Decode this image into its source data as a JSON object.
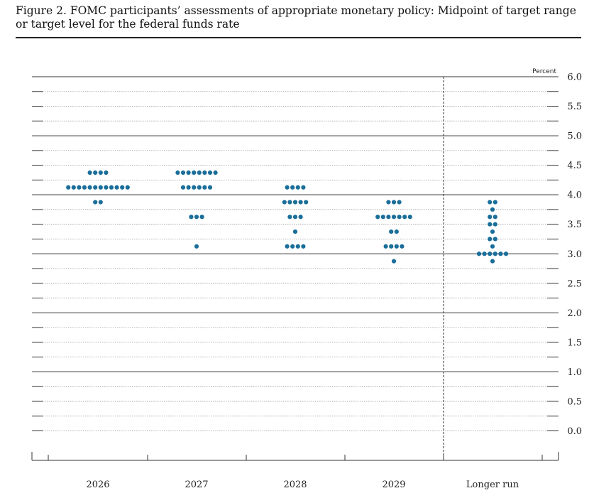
{
  "figure": {
    "title_line1": "Figure 2. FOMC participants’ assessments of appropriate monetary policy: Midpoint of target range",
    "title_line2": "or target level for the federal funds rate"
  },
  "chart_data": {
    "type": "scatter",
    "unit_label": "Percent",
    "ylim": [
      0,
      6
    ],
    "yticks": [
      0.0,
      0.5,
      1.0,
      1.5,
      2.0,
      2.5,
      3.0,
      3.5,
      4.0,
      4.5,
      5.0,
      5.5,
      6.0
    ],
    "ytick_labels": [
      "0.0",
      "0.5",
      "1.0",
      "1.5",
      "2.0",
      "2.5",
      "3.0",
      "3.5",
      "4.0",
      "4.5",
      "5.0",
      "5.5",
      "6.0"
    ],
    "categories": [
      "2026",
      "2027",
      "2028",
      "2029",
      "Longer run"
    ],
    "dots": [
      {
        "category": "2026",
        "levels": [
          {
            "rate": 4.375,
            "count": 4
          },
          {
            "rate": 4.125,
            "count": 12
          },
          {
            "rate": 3.875,
            "count": 2
          }
        ]
      },
      {
        "category": "2027",
        "levels": [
          {
            "rate": 4.375,
            "count": 8
          },
          {
            "rate": 4.125,
            "count": 6
          },
          {
            "rate": 3.625,
            "count": 3
          },
          {
            "rate": 3.125,
            "count": 1
          }
        ]
      },
      {
        "category": "2028",
        "levels": [
          {
            "rate": 4.125,
            "count": 4
          },
          {
            "rate": 3.875,
            "count": 5
          },
          {
            "rate": 3.625,
            "count": 3
          },
          {
            "rate": 3.375,
            "count": 1
          },
          {
            "rate": 3.125,
            "count": 4
          }
        ]
      },
      {
        "category": "2029",
        "levels": [
          {
            "rate": 3.875,
            "count": 3
          },
          {
            "rate": 3.625,
            "count": 7
          },
          {
            "rate": 3.375,
            "count": 2
          },
          {
            "rate": 3.125,
            "count": 4
          },
          {
            "rate": 2.875,
            "count": 1
          }
        ]
      },
      {
        "category": "Longer run",
        "levels": [
          {
            "rate": 3.875,
            "count": 2
          },
          {
            "rate": 3.75,
            "count": 1
          },
          {
            "rate": 3.625,
            "count": 2
          },
          {
            "rate": 3.5,
            "count": 2
          },
          {
            "rate": 3.375,
            "count": 1
          },
          {
            "rate": 3.25,
            "count": 2
          },
          {
            "rate": 3.125,
            "count": 1
          },
          {
            "rate": 3.0,
            "count": 6
          },
          {
            "rate": 2.875,
            "count": 1
          }
        ]
      }
    ],
    "dot_color": "#1a6e9a",
    "grid": true
  }
}
